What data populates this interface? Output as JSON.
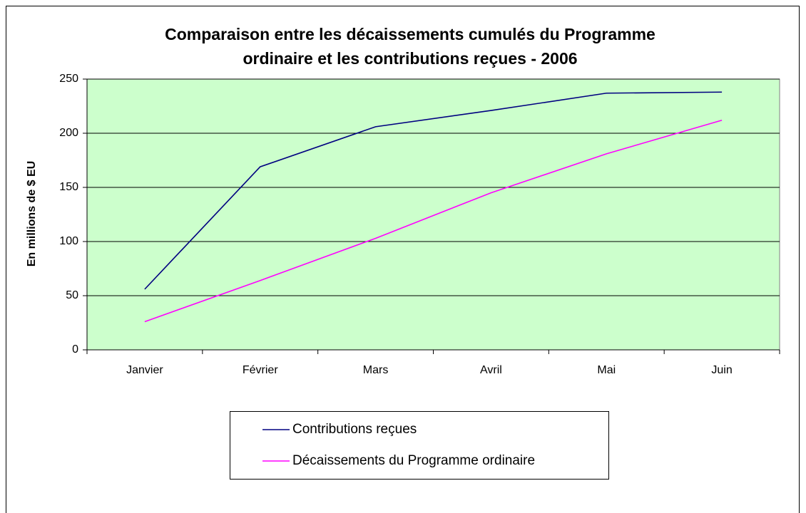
{
  "chart_data": {
    "type": "line",
    "title": [
      "Comparaison entre les décaissements cumulés du Programme",
      "ordinaire et les contributions reçues - 2006"
    ],
    "y_label": "En millions de $ EU",
    "categories": [
      "Janvier",
      "Février",
      "Mars",
      "Avril",
      "Mai",
      "Juin"
    ],
    "series": [
      {
        "name": "Contributions reçues",
        "color": "#000080",
        "values": [
          56,
          169,
          206,
          221,
          237,
          238
        ]
      },
      {
        "name": "Décaissements du Programme ordinaire",
        "color": "#ff00ff",
        "values": [
          26,
          64,
          103,
          145,
          181,
          212
        ]
      }
    ],
    "ylim": [
      0,
      250
    ],
    "yticks": [
      0,
      50,
      100,
      150,
      200,
      250
    ],
    "grid": true,
    "plot_background": "#ccffcc",
    "legend": "bottom"
  }
}
